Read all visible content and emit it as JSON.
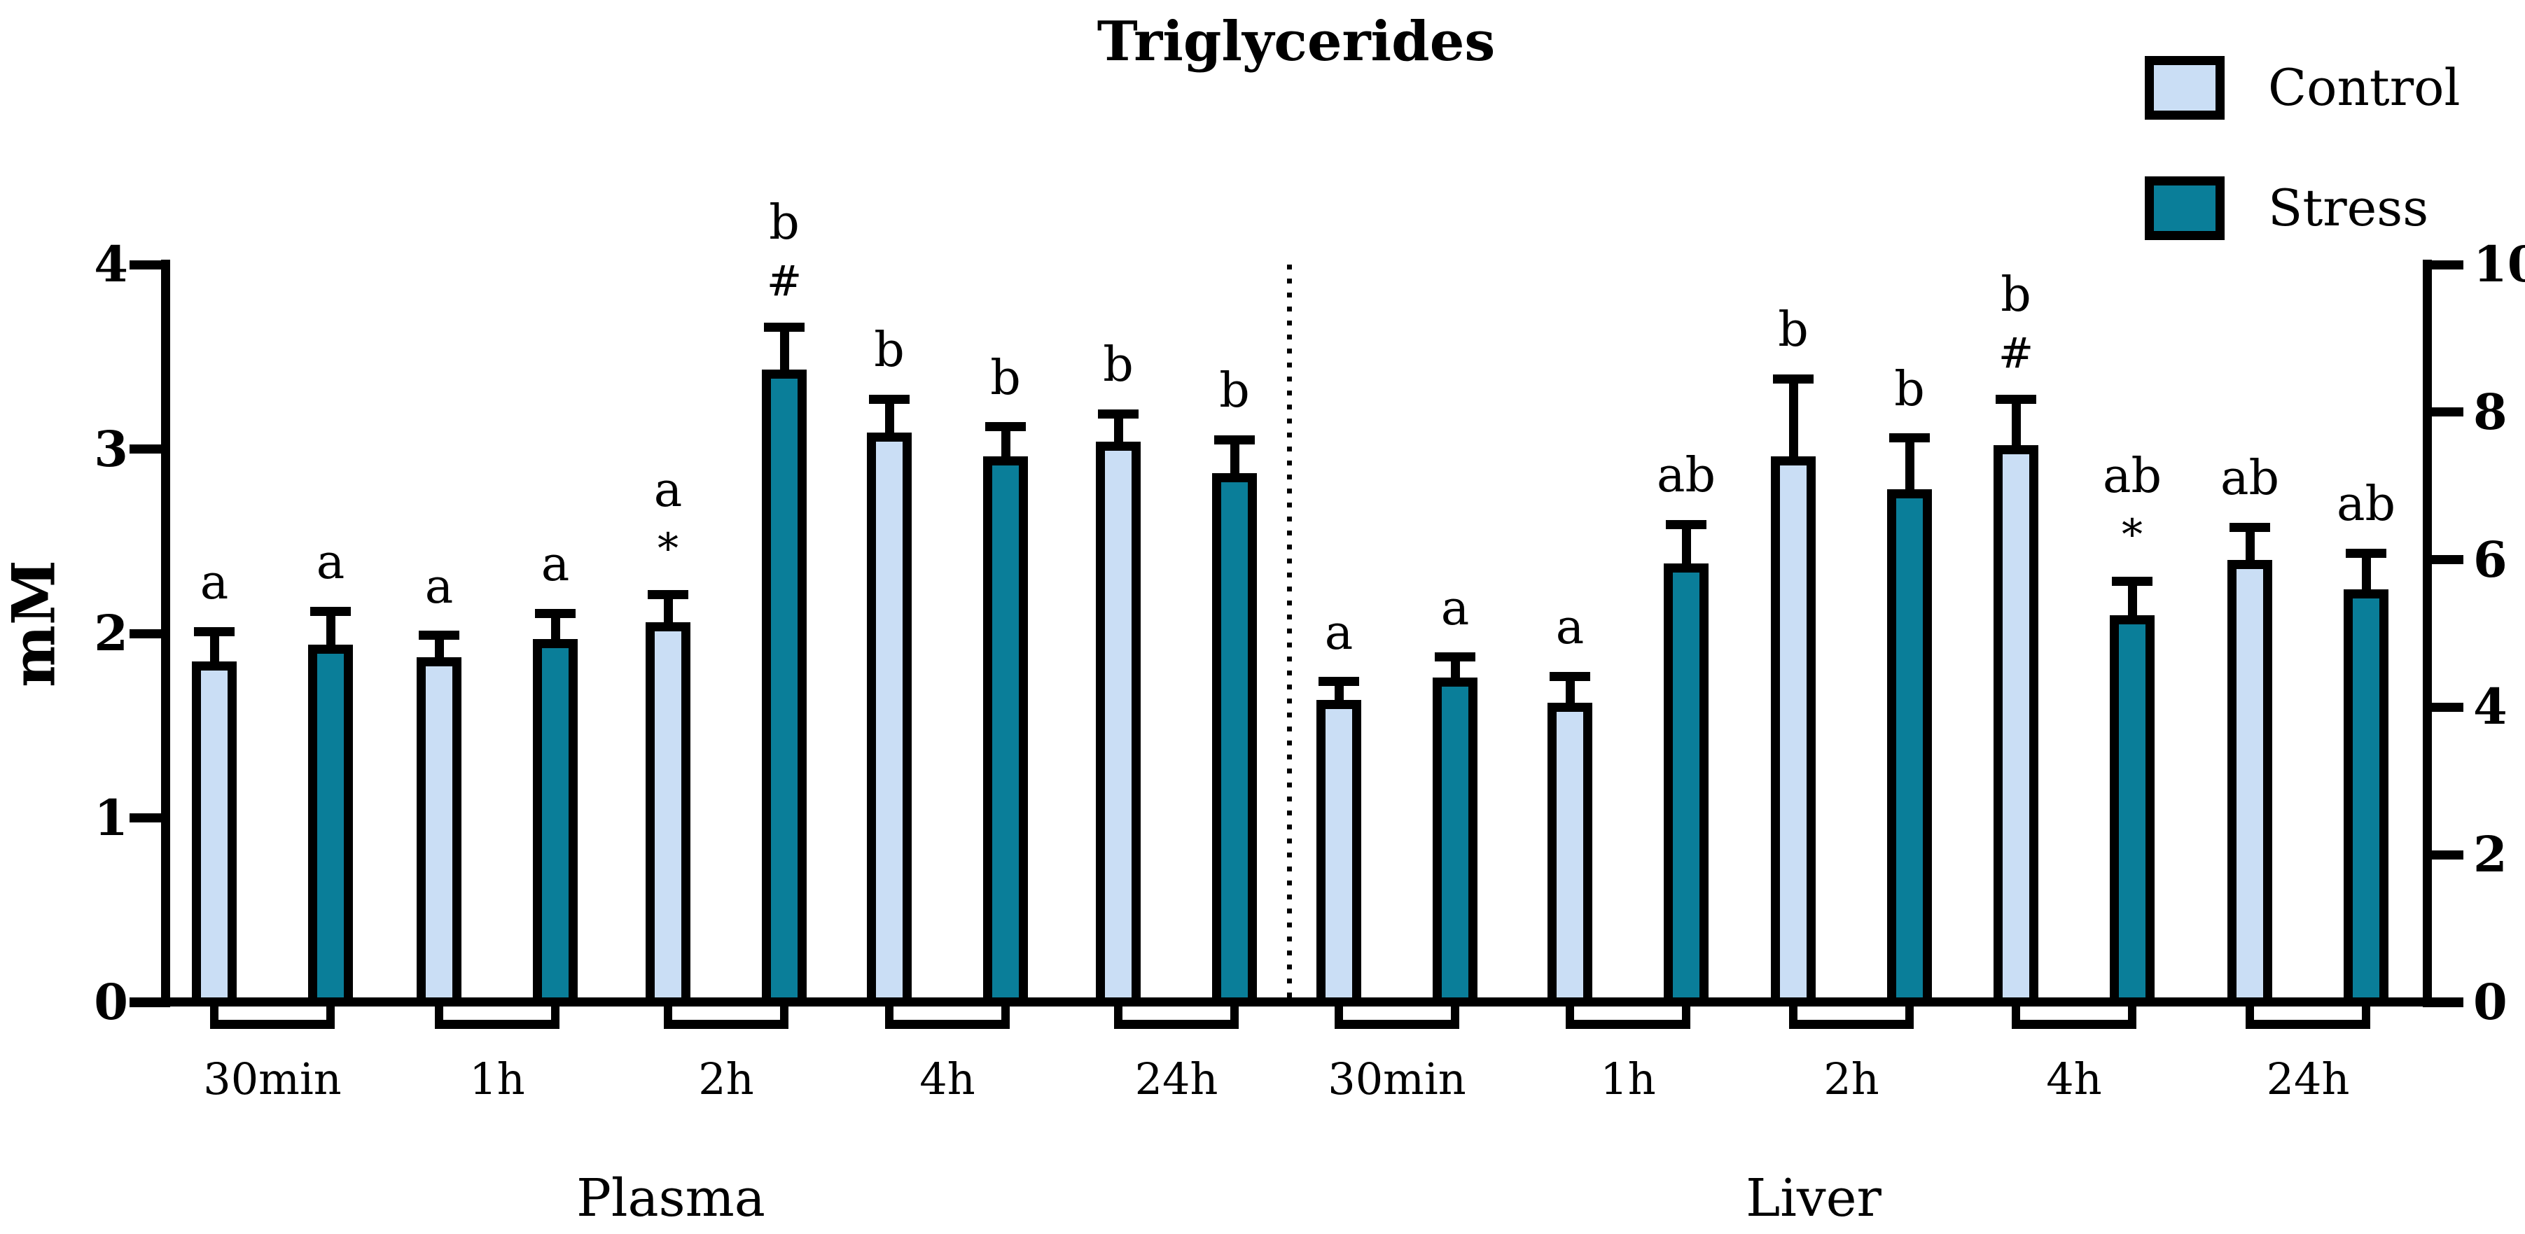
{
  "chart_data": {
    "type": "bar",
    "title": "Triglycerides",
    "legend": [
      {
        "label": "Control",
        "color": "#cadef5"
      },
      {
        "label": "Stress",
        "color": "#0a7e99"
      }
    ],
    "legend_position": "top-right",
    "grid": false,
    "categories": [
      "30min",
      "1h",
      "2h",
      "4h",
      "24h"
    ],
    "left_axis": {
      "label": "mM",
      "range": [
        0,
        4
      ],
      "ticks": [
        0,
        1,
        2,
        3,
        4
      ]
    },
    "right_axis": {
      "label": "",
      "range": [
        0,
        10
      ],
      "ticks": [
        0,
        2,
        4,
        6,
        8,
        10
      ]
    },
    "panels": [
      {
        "label": "Plasma",
        "axis": "left",
        "series": [
          {
            "name": "Control",
            "values": [
              1.85,
              1.87,
              2.06,
              3.09,
              3.04
            ],
            "errors": [
              0.16,
              0.12,
              0.15,
              0.18,
              0.15
            ],
            "annotations": [
              [
                "a"
              ],
              [
                "a"
              ],
              [
                "a",
                "*"
              ],
              [
                "b"
              ],
              [
                "b"
              ]
            ]
          },
          {
            "name": "Stress",
            "values": [
              1.94,
              1.97,
              3.43,
              2.96,
              2.87
            ],
            "errors": [
              0.18,
              0.14,
              0.23,
              0.16,
              0.18
            ],
            "annotations": [
              [
                "a"
              ],
              [
                "a"
              ],
              [
                "b",
                "#"
              ],
              [
                "b"
              ],
              [
                "b"
              ]
            ]
          }
        ]
      },
      {
        "label": "Liver",
        "axis": "right",
        "series": [
          {
            "name": "Control",
            "values": [
              4.1,
              4.06,
              7.4,
              7.55,
              6.0
            ],
            "errors": [
              0.25,
              0.36,
              1.05,
              0.62,
              0.44
            ],
            "annotations": [
              [
                "a"
              ],
              [
                "a"
              ],
              [
                "b"
              ],
              [
                "b",
                "#"
              ],
              [
                "ab"
              ]
            ]
          },
          {
            "name": "Stress",
            "values": [
              4.4,
              5.95,
              6.95,
              5.25,
              5.6
            ],
            "errors": [
              0.28,
              0.53,
              0.7,
              0.46,
              0.49
            ],
            "annotations": [
              [
                "a"
              ],
              [
                "ab"
              ],
              [
                "b"
              ],
              [
                "ab",
                "*"
              ],
              [
                "ab"
              ]
            ]
          }
        ]
      }
    ]
  }
}
